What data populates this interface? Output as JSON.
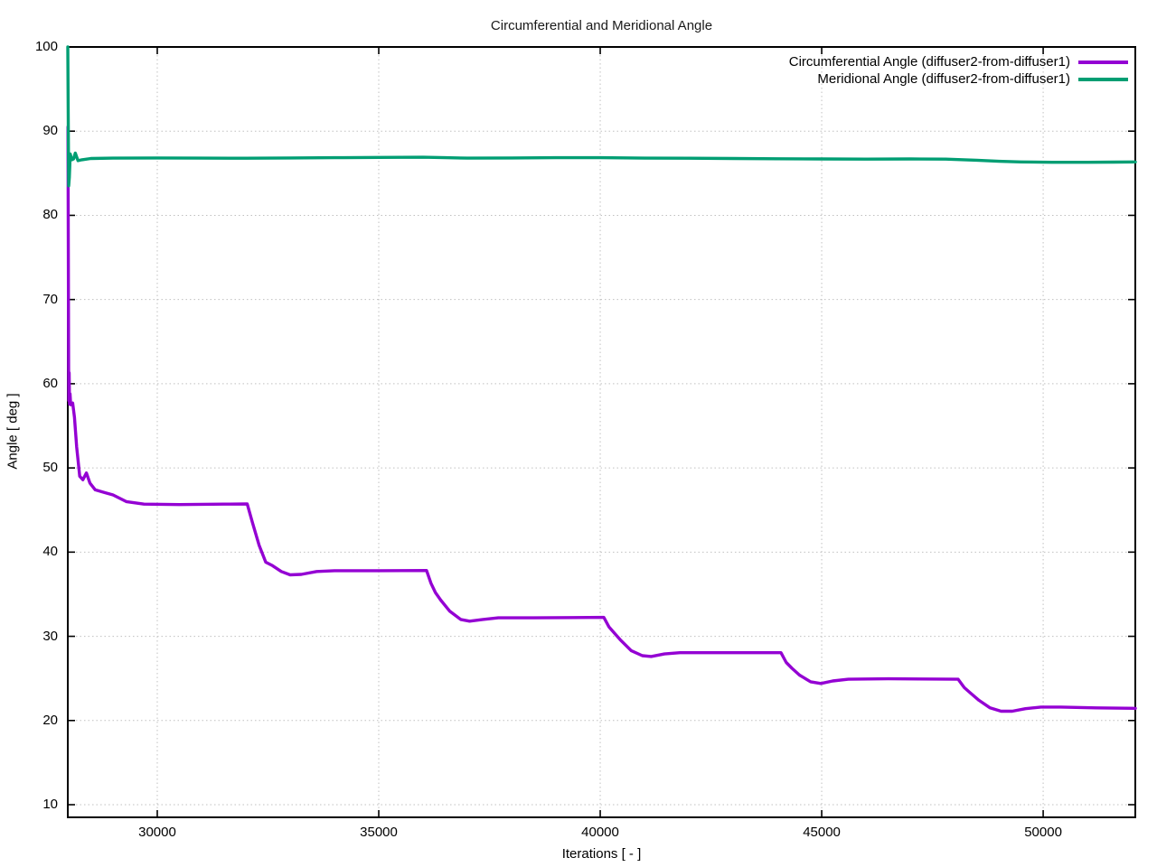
{
  "page": {
    "background": "#ffffff"
  },
  "chart_data": {
    "type": "line",
    "title": "Circumferential and Meridional Angle",
    "xlabel": "Iterations [ - ]",
    "ylabel": "Angle [ deg ]",
    "xlim": [
      27980,
      52080
    ],
    "ylim": [
      8.5,
      100
    ],
    "x_ticks": [
      30000,
      35000,
      40000,
      45000,
      50000
    ],
    "y_ticks": [
      10,
      20,
      30,
      40,
      50,
      60,
      70,
      80,
      90,
      100
    ],
    "grid": true,
    "grid_style": "dotted",
    "grid_color": "#c0c0c0",
    "border_color": "#000000",
    "legend_position": "top-right-inside",
    "series": [
      {
        "name": "Circumferential Angle (diffuser2-from-diffuser1)",
        "color": "#9400d3",
        "points": [
          [
            27985,
            90.5
          ],
          [
            27993,
            75
          ],
          [
            27998,
            62
          ],
          [
            28003,
            58.0
          ],
          [
            28010,
            61.3
          ],
          [
            28018,
            57.6
          ],
          [
            28030,
            58.8
          ],
          [
            28045,
            57.5
          ],
          [
            28090,
            57.7
          ],
          [
            28130,
            56.0
          ],
          [
            28180,
            52.5
          ],
          [
            28250,
            49.0
          ],
          [
            28320,
            48.6
          ],
          [
            28400,
            49.4
          ],
          [
            28480,
            48.2
          ],
          [
            28600,
            47.4
          ],
          [
            28800,
            47.1
          ],
          [
            29000,
            46.8
          ],
          [
            29300,
            46.0
          ],
          [
            29700,
            45.7
          ],
          [
            30500,
            45.65
          ],
          [
            31500,
            45.7
          ],
          [
            32030,
            45.72
          ],
          [
            32150,
            43.5
          ],
          [
            32300,
            40.8
          ],
          [
            32450,
            38.8
          ],
          [
            32600,
            38.4
          ],
          [
            32800,
            37.7
          ],
          [
            33000,
            37.3
          ],
          [
            33250,
            37.35
          ],
          [
            33600,
            37.7
          ],
          [
            34000,
            37.8
          ],
          [
            35000,
            37.8
          ],
          [
            36080,
            37.82
          ],
          [
            36180,
            36.3
          ],
          [
            36280,
            35.2
          ],
          [
            36400,
            34.3
          ],
          [
            36600,
            33.0
          ],
          [
            36850,
            32.0
          ],
          [
            37050,
            31.8
          ],
          [
            37350,
            32.0
          ],
          [
            37700,
            32.2
          ],
          [
            38500,
            32.2
          ],
          [
            40080,
            32.25
          ],
          [
            40200,
            31.1
          ],
          [
            40300,
            30.5
          ],
          [
            40450,
            29.6
          ],
          [
            40700,
            28.3
          ],
          [
            40950,
            27.7
          ],
          [
            41150,
            27.6
          ],
          [
            41450,
            27.9
          ],
          [
            41800,
            28.05
          ],
          [
            43000,
            28.05
          ],
          [
            44080,
            28.05
          ],
          [
            44200,
            26.9
          ],
          [
            44330,
            26.2
          ],
          [
            44500,
            25.4
          ],
          [
            44750,
            24.6
          ],
          [
            44980,
            24.4
          ],
          [
            45250,
            24.7
          ],
          [
            45600,
            24.9
          ],
          [
            46500,
            24.95
          ],
          [
            48080,
            24.9
          ],
          [
            48220,
            23.9
          ],
          [
            48350,
            23.3
          ],
          [
            48550,
            22.4
          ],
          [
            48800,
            21.5
          ],
          [
            49050,
            21.1
          ],
          [
            49300,
            21.1
          ],
          [
            49600,
            21.4
          ],
          [
            49950,
            21.6
          ],
          [
            50400,
            21.6
          ],
          [
            51200,
            21.5
          ],
          [
            52080,
            21.45
          ]
        ]
      },
      {
        "name": "Meridional Angle (diffuser2-from-diffuser1)",
        "color": "#009e73",
        "points": [
          [
            27980,
            100
          ],
          [
            27995,
            88
          ],
          [
            28000,
            83.5
          ],
          [
            28015,
            84.5
          ],
          [
            28035,
            87.3
          ],
          [
            28070,
            86.6
          ],
          [
            28110,
            86.7
          ],
          [
            28150,
            87.4
          ],
          [
            28210,
            86.5
          ],
          [
            28300,
            86.6
          ],
          [
            28500,
            86.75
          ],
          [
            29000,
            86.8
          ],
          [
            30000,
            86.82
          ],
          [
            31000,
            86.8
          ],
          [
            32000,
            86.78
          ],
          [
            33000,
            86.82
          ],
          [
            34000,
            86.85
          ],
          [
            35000,
            86.88
          ],
          [
            36000,
            86.9
          ],
          [
            36500,
            86.85
          ],
          [
            37000,
            86.8
          ],
          [
            38000,
            86.82
          ],
          [
            39000,
            86.85
          ],
          [
            40000,
            86.85
          ],
          [
            41000,
            86.8
          ],
          [
            42000,
            86.78
          ],
          [
            43000,
            86.75
          ],
          [
            44000,
            86.72
          ],
          [
            45000,
            86.7
          ],
          [
            46000,
            86.68
          ],
          [
            47000,
            86.7
          ],
          [
            47800,
            86.68
          ],
          [
            48500,
            86.55
          ],
          [
            49000,
            86.42
          ],
          [
            49500,
            86.35
          ],
          [
            50200,
            86.3
          ],
          [
            51000,
            86.3
          ],
          [
            51600,
            86.32
          ],
          [
            52080,
            86.35
          ]
        ]
      }
    ]
  }
}
